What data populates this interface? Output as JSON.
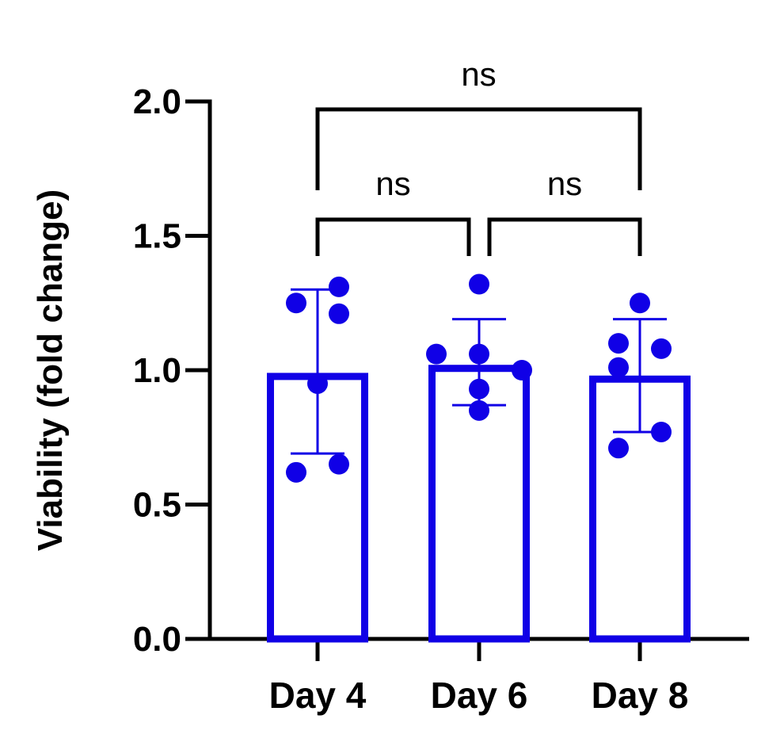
{
  "chart_data": {
    "type": "bar",
    "title": "",
    "xlabel": "",
    "ylabel": "Viability (fold change)",
    "ylim": [
      0,
      2.0
    ],
    "yticks": [
      0.0,
      0.5,
      1.0,
      1.5,
      2.0
    ],
    "ytick_labels": [
      "0.0",
      "0.5",
      "1.0",
      "1.5",
      "2.0"
    ],
    "categories": [
      "Day 4",
      "Day 6",
      "Day 8"
    ],
    "values": [
      0.99,
      1.02,
      0.98
    ],
    "error_bars": [
      {
        "low": 0.69,
        "high": 1.3
      },
      {
        "low": 0.87,
        "high": 1.19
      },
      {
        "low": 0.77,
        "high": 1.19
      }
    ],
    "points": [
      [
        1.31,
        1.25,
        1.21,
        0.95,
        0.65,
        0.62
      ],
      [
        1.32,
        1.06,
        1.06,
        1.0,
        0.93,
        0.85
      ],
      [
        1.25,
        1.1,
        1.08,
        1.01,
        0.77,
        0.71
      ]
    ],
    "comparisons": [
      {
        "from": 0,
        "to": 1,
        "label": "ns"
      },
      {
        "from": 1,
        "to": 2,
        "label": "ns"
      },
      {
        "from": 0,
        "to": 2,
        "label": "ns"
      }
    ],
    "grid": false,
    "colors": {
      "series": "#1000e6",
      "axis": "#000000"
    }
  }
}
